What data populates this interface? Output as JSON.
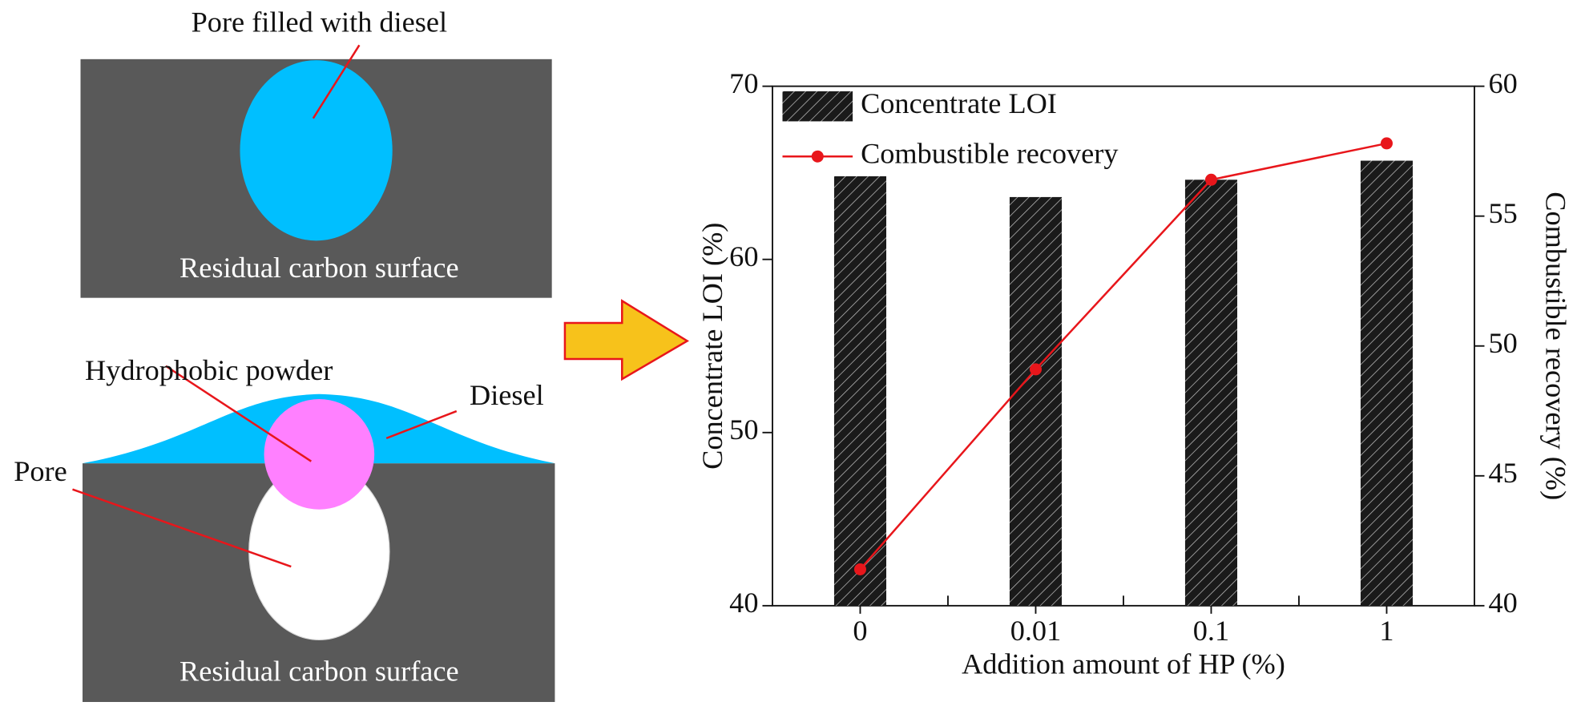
{
  "diagram": {
    "top": {
      "label": "Pore filled with diesel",
      "surface": "Residual carbon surface"
    },
    "bottom": {
      "powder": "Hydrophobic powder",
      "diesel": "Diesel",
      "pore": "Pore",
      "surface": "Residual carbon surface"
    }
  },
  "chart_data": {
    "type": "bar",
    "categories": [
      "0",
      "0.01",
      "0.1",
      "1"
    ],
    "series": [
      {
        "name": "Concentrate LOI",
        "type": "bar",
        "color": "#1a1a1a",
        "values": [
          64.8,
          63.6,
          64.6,
          65.7
        ]
      },
      {
        "name": "Combustible recovery",
        "type": "line",
        "axis": "y2",
        "color": "#e8161b",
        "values": [
          41.4,
          49.1,
          56.4,
          57.8
        ]
      }
    ],
    "xlabel": "Addition amount of HP  (%)",
    "ylabel": "Concentrate LOI (%)",
    "y2label": "Combustible recovery (%)",
    "ylim": [
      40,
      70
    ],
    "yticks": [
      40,
      50,
      60,
      70
    ],
    "y2lim": [
      40,
      60
    ],
    "y2ticks": [
      40,
      45,
      50,
      55,
      60
    ],
    "legend": "upper left"
  }
}
